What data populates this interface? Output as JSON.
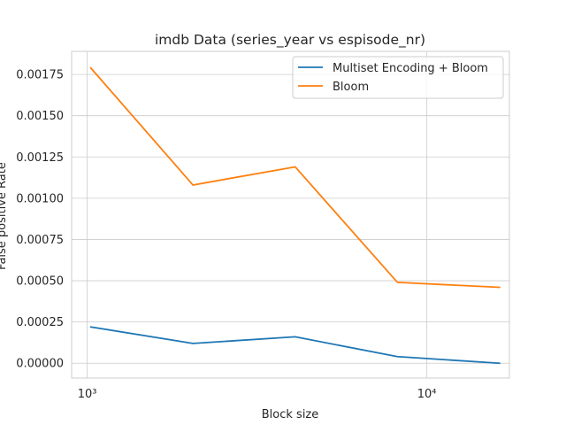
{
  "chart_data": {
    "type": "line",
    "title": "imdb Data (series_year vs espisode_nr)",
    "xlabel": "Block size",
    "ylabel": "False positive Rate",
    "xscale": "log",
    "xlim": [
      900,
      17500
    ],
    "ylim": [
      -9e-05,
      0.00189
    ],
    "x": [
      1024,
      2048,
      4096,
      8192,
      16384
    ],
    "xticks": [
      1000,
      10000
    ],
    "xtick_labels": [
      "10³",
      "10⁴"
    ],
    "yticks": [
      0.0,
      0.00025,
      0.0005,
      0.00075,
      0.001,
      0.00125,
      0.0015,
      0.00175
    ],
    "ytick_labels": [
      "0.00000",
      "0.00025",
      "0.00050",
      "0.00075",
      "0.00100",
      "0.00125",
      "0.00150",
      "0.00175"
    ],
    "grid": true,
    "legend_position": "top-right",
    "series": [
      {
        "name": "Multiset Encoding + Bloom",
        "color": "#1f77b4",
        "values": [
          0.00022,
          0.00012,
          0.00016,
          4e-05,
          0.0
        ]
      },
      {
        "name": "Bloom",
        "color": "#ff7f0e",
        "values": [
          0.00179,
          0.00108,
          0.00119,
          0.00049,
          0.00046
        ]
      }
    ]
  }
}
